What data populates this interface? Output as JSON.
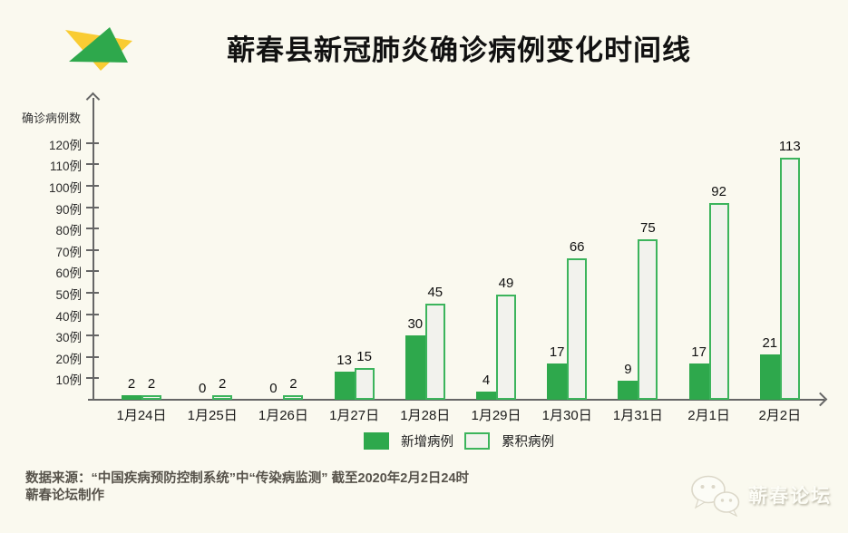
{
  "page": {
    "background": "#faf9ef"
  },
  "header": {
    "title": "蕲春县新冠肺炎确诊病例变化时间线",
    "logo": "qichun-forum-logo",
    "logo_colors": {
      "yellow": "#f9cc33",
      "green": "#2ea84c"
    }
  },
  "chart_data": {
    "type": "bar",
    "title": "蕲春县新冠肺炎确诊病例变化时间线",
    "xlabel": "",
    "ylabel": "确诊病例数",
    "categories": [
      "1月24日",
      "1月25日",
      "1月26日",
      "1月27日",
      "1月28日",
      "1月29日",
      "1月30日",
      "1月31日",
      "2月1日",
      "2月2日"
    ],
    "series": [
      {
        "name": "新增病例",
        "style": "solid",
        "color": "#2ea84c",
        "values": [
          2,
          0,
          0,
          13,
          30,
          4,
          17,
          9,
          17,
          21
        ]
      },
      {
        "name": "累积病例",
        "style": "outlined",
        "fill": "#f2f2ed",
        "border": "#3cb45c",
        "values": [
          2,
          2,
          2,
          15,
          45,
          49,
          66,
          75,
          92,
          113
        ]
      }
    ],
    "y_ticks": [
      10,
      20,
      30,
      40,
      50,
      60,
      70,
      80,
      90,
      100,
      110,
      120
    ],
    "y_tick_suffix": "例",
    "ylim": [
      0,
      125
    ],
    "grid": false,
    "legend_position": "bottom",
    "axis_color": "#666666"
  },
  "footer": {
    "line1": "数据来源：“中国疾病预防控制系统”中“传染病监测” 截至2020年2月2日24时",
    "line2": "蕲春论坛制作"
  },
  "watermark": {
    "icon": "wechat-icon",
    "text": "蕲春论坛"
  }
}
